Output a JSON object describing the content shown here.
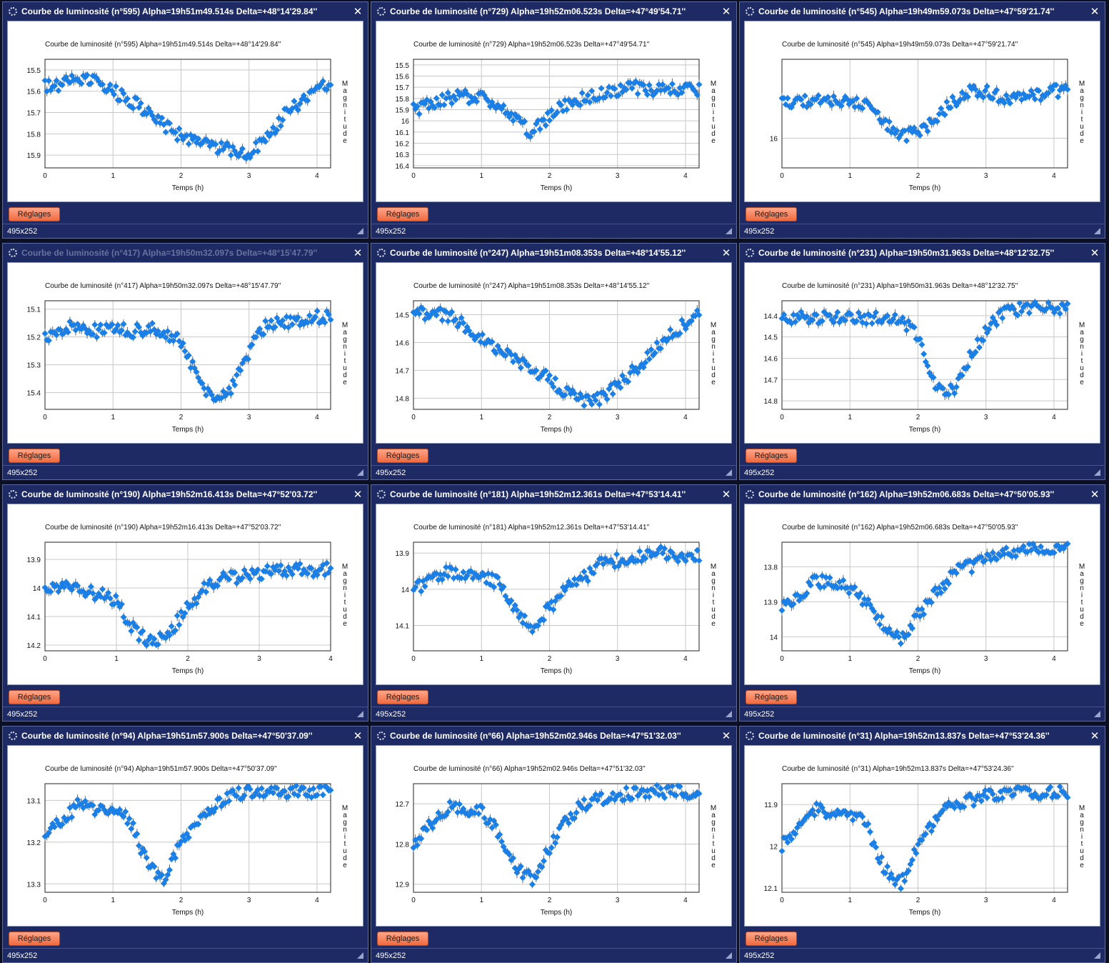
{
  "common": {
    "settings_label": "Réglages",
    "size_label": "495x252",
    "xlabel": "Temps (h)",
    "ylabel": "Magnitude",
    "close_glyph": "✕",
    "colors": {
      "window_bg": "#1d2a63",
      "point": "#1a7fe6",
      "button": "#f37b54"
    }
  },
  "windows": [
    {
      "title": "Courbe de luminosité (n°595) Alpha=19h51m49.514s Delta=+48°14'29.84''",
      "chart_data": {
        "type": "scatter",
        "title": "Courbe de luminosité (n°595) Alpha=19h51m49.514s Delta=+48°14'29.84''",
        "xlabel": "Temps (h)",
        "ylabel": "Magnitude",
        "xlim": [
          0,
          4.2
        ],
        "ylim": [
          15.45,
          15.96
        ],
        "y_inverted": true,
        "xticks": [
          0,
          1,
          2,
          3,
          4
        ],
        "yticks": [
          15.5,
          15.6,
          15.7,
          15.8,
          15.9
        ],
        "x": [
          0,
          0.25,
          0.5,
          0.75,
          1,
          1.25,
          1.5,
          1.75,
          2,
          2.25,
          2.5,
          2.75,
          3,
          3.25,
          3.5,
          3.75,
          4,
          4.2
        ],
        "y": [
          15.58,
          15.57,
          15.54,
          15.56,
          15.6,
          15.64,
          15.7,
          15.76,
          15.81,
          15.84,
          15.86,
          15.88,
          15.9,
          15.82,
          15.72,
          15.65,
          15.6,
          15.55
        ]
      }
    },
    {
      "title": "Courbe de luminosité (n°729) Alpha=19h52m06.523s Delta=+47°49'54.71''",
      "chart_data": {
        "type": "scatter",
        "title": "Courbe de luminosité (n°729) Alpha=19h52m06.523s Delta=+47°49'54.71''",
        "xlabel": "Temps (h)",
        "ylabel": "Magnitude",
        "xlim": [
          0,
          4.2
        ],
        "ylim": [
          15.45,
          16.42
        ],
        "y_inverted": true,
        "xticks": [
          0,
          1,
          2,
          3,
          4
        ],
        "yticks": [
          15.5,
          15.6,
          15.7,
          15.8,
          15.9,
          16,
          16.1,
          16.2,
          16.3,
          16.4
        ],
        "x": [
          0,
          0.25,
          0.5,
          0.75,
          1,
          1.25,
          1.5,
          1.75,
          2,
          2.25,
          2.5,
          2.75,
          3,
          3.25,
          3.5,
          3.75,
          4,
          4.2
        ],
        "y": [
          15.9,
          15.85,
          15.8,
          15.78,
          15.8,
          15.85,
          16.0,
          16.1,
          15.95,
          15.85,
          15.8,
          15.75,
          15.72,
          15.7,
          15.72,
          15.72,
          15.72,
          15.72
        ]
      }
    },
    {
      "title": "Courbe de luminosité (n°545) Alpha=19h49m59.073s Delta=+47°59'21.74''",
      "chart_data": {
        "type": "scatter",
        "title": "Courbe de luminosité (n°545) Alpha=19h49m59.073s Delta=+47°59'21.74''",
        "xlabel": "Temps (h)",
        "ylabel": "Magnitude",
        "xlim": [
          0,
          4.2
        ],
        "ylim": [
          15.6,
          16.15
        ],
        "y_inverted": true,
        "xticks": [
          0,
          1,
          2,
          3,
          4
        ],
        "yticks": [
          16
        ],
        "x": [
          0,
          0.25,
          0.5,
          0.75,
          1,
          1.25,
          1.5,
          1.75,
          2,
          2.25,
          2.5,
          2.75,
          3,
          3.25,
          3.5,
          3.75,
          4,
          4.2
        ],
        "y": [
          15.82,
          15.82,
          15.81,
          15.82,
          15.82,
          15.83,
          15.92,
          15.98,
          15.98,
          15.9,
          15.82,
          15.76,
          15.76,
          15.8,
          15.78,
          15.78,
          15.76,
          15.76
        ]
      }
    },
    {
      "title": "Courbe de luminosité (n°417) Alpha=19h50m32.097s Delta=+48°15'47.79''",
      "dim": true,
      "chart_data": {
        "type": "scatter",
        "title": "Courbe de luminosité (n°417) Alpha=19h50m32.097s Delta=+48°15'47.79''",
        "xlabel": "Temps (h)",
        "ylabel": "Magnitude",
        "xlim": [
          0,
          4.2
        ],
        "ylim": [
          15.07,
          15.46
        ],
        "y_inverted": true,
        "xticks": [
          0,
          1,
          2,
          3,
          4
        ],
        "yticks": [
          15.1,
          15.2,
          15.3,
          15.4
        ],
        "x": [
          0,
          0.25,
          0.5,
          0.75,
          1,
          1.25,
          1.5,
          1.75,
          2,
          2.25,
          2.5,
          2.75,
          3,
          3.25,
          3.5,
          3.75,
          4,
          4.2
        ],
        "y": [
          15.2,
          15.17,
          15.16,
          15.18,
          15.17,
          15.18,
          15.17,
          15.18,
          15.22,
          15.35,
          15.43,
          15.38,
          15.25,
          15.16,
          15.15,
          15.14,
          15.13,
          15.13
        ]
      }
    },
    {
      "title": "Courbe de luminosité (n°247) Alpha=19h51m08.353s Delta=+48°14'55.12''",
      "chart_data": {
        "type": "scatter",
        "title": "Courbe de luminosité (n°247) Alpha=19h51m08.353s Delta=+48°14'55.12''",
        "xlabel": "Temps (h)",
        "ylabel": "Magnitude",
        "xlim": [
          0,
          4.2
        ],
        "ylim": [
          14.45,
          14.84
        ],
        "y_inverted": true,
        "xticks": [
          0,
          1,
          2,
          3,
          4
        ],
        "yticks": [
          14.5,
          14.6,
          14.7,
          14.8
        ],
        "x": [
          0,
          0.25,
          0.5,
          0.75,
          1,
          1.25,
          1.5,
          1.75,
          2,
          2.25,
          2.5,
          2.75,
          3,
          3.25,
          3.5,
          3.75,
          4,
          4.2
        ],
        "y": [
          14.5,
          14.49,
          14.5,
          14.54,
          14.59,
          14.62,
          14.66,
          14.7,
          14.73,
          14.78,
          14.81,
          14.8,
          14.75,
          14.7,
          14.64,
          14.58,
          14.53,
          14.48
        ]
      }
    },
    {
      "title": "Courbe de luminosité (n°231) Alpha=19h50m31.963s Delta=+48°12'32.75''",
      "chart_data": {
        "type": "scatter",
        "title": "Courbe de luminosité (n°231) Alpha=19h50m31.963s Delta=+48°12'32.75''",
        "xlabel": "Temps (h)",
        "ylabel": "Magnitude",
        "xlim": [
          0,
          4.2
        ],
        "ylim": [
          14.33,
          14.84
        ],
        "y_inverted": true,
        "xticks": [
          0,
          1,
          2,
          3,
          4
        ],
        "yticks": [
          14.4,
          14.5,
          14.6,
          14.7,
          14.8
        ],
        "x": [
          0,
          0.25,
          0.5,
          0.75,
          1,
          1.25,
          1.5,
          1.75,
          2,
          2.25,
          2.5,
          2.75,
          3,
          3.25,
          3.5,
          3.75,
          4,
          4.2
        ],
        "y": [
          14.42,
          14.41,
          14.41,
          14.41,
          14.4,
          14.41,
          14.41,
          14.42,
          14.5,
          14.72,
          14.76,
          14.6,
          14.48,
          14.38,
          14.37,
          14.36,
          14.36,
          14.36
        ]
      }
    },
    {
      "title": "Courbe de luminosité (n°190) Alpha=19h52m16.413s Delta=+47°52'03.72''",
      "chart_data": {
        "type": "scatter",
        "title": "Courbe de luminosité (n°190) Alpha=19h52m16.413s Delta=+47°52'03.72''",
        "xlabel": "Temps (h)",
        "ylabel": "Magnitude",
        "xlim": [
          0,
          4
        ],
        "ylim": [
          13.84,
          14.22
        ],
        "y_inverted": true,
        "xticks": [
          0,
          1,
          2,
          3,
          4
        ],
        "yticks": [
          13.9,
          14,
          14.1,
          14.2
        ],
        "x": [
          0,
          0.25,
          0.5,
          0.75,
          1,
          1.25,
          1.5,
          1.75,
          2,
          2.25,
          2.5,
          2.75,
          3,
          3.25,
          3.5,
          3.75,
          4
        ],
        "y": [
          14.0,
          13.99,
          14.01,
          14.02,
          14.05,
          14.15,
          14.19,
          14.15,
          14.07,
          14.0,
          13.97,
          13.96,
          13.95,
          13.94,
          13.93,
          13.94,
          13.93
        ]
      }
    },
    {
      "title": "Courbe de luminosité (n°181) Alpha=19h52m12.361s Delta=+47°53'14.41''",
      "chart_data": {
        "type": "scatter",
        "title": "Courbe de luminosité (n°181) Alpha=19h52m12.361s Delta=+47°53'14.41''",
        "xlabel": "Temps (h)",
        "ylabel": "Magnitude",
        "xlim": [
          0,
          4.2
        ],
        "ylim": [
          13.87,
          14.17
        ],
        "y_inverted": true,
        "xticks": [
          0,
          1,
          2,
          3,
          4
        ],
        "yticks": [
          13.9,
          14,
          14.1
        ],
        "x": [
          0,
          0.25,
          0.5,
          0.75,
          1,
          1.25,
          1.5,
          1.75,
          2,
          2.25,
          2.5,
          2.75,
          3,
          3.25,
          3.5,
          3.75,
          4,
          4.2
        ],
        "y": [
          14.0,
          13.98,
          13.95,
          13.96,
          13.97,
          13.98,
          14.05,
          14.11,
          14.05,
          14.0,
          13.97,
          13.93,
          13.92,
          13.91,
          13.9,
          13.9,
          13.91,
          13.91
        ]
      }
    },
    {
      "title": "Courbe de luminosité (n°162) Alpha=19h52m06.683s Delta=+47°50'05.93''",
      "chart_data": {
        "type": "scatter",
        "title": "Courbe de luminosité (n°162) Alpha=19h52m06.683s Delta=+47°50'05.93''",
        "xlabel": "Temps (h)",
        "ylabel": "Magnitude",
        "xlim": [
          0,
          4.2
        ],
        "ylim": [
          13.73,
          14.04
        ],
        "y_inverted": true,
        "xticks": [
          0,
          1,
          2,
          3,
          4
        ],
        "yticks": [
          13.8,
          13.9,
          14
        ],
        "x": [
          0,
          0.25,
          0.5,
          0.75,
          1,
          1.25,
          1.5,
          1.75,
          2,
          2.25,
          2.5,
          2.75,
          3,
          3.25,
          3.5,
          3.75,
          4,
          4.2
        ],
        "y": [
          13.92,
          13.88,
          13.84,
          13.85,
          13.86,
          13.9,
          13.97,
          14.01,
          13.94,
          13.88,
          13.82,
          13.8,
          13.78,
          13.76,
          13.75,
          13.75,
          13.75,
          13.75
        ]
      }
    },
    {
      "title": "Courbe de luminosité (n°94) Alpha=19h51m57.900s Delta=+47°50'37.09''",
      "chart_data": {
        "type": "scatter",
        "title": "Courbe de luminosité (n°94) Alpha=19h51m57.900s Delta=+47°50'37.09''",
        "xlabel": "Temps (h)",
        "ylabel": "Magnitude",
        "xlim": [
          0,
          4.2
        ],
        "ylim": [
          13.06,
          13.32
        ],
        "y_inverted": true,
        "xticks": [
          0,
          1,
          2,
          3,
          4
        ],
        "yticks": [
          13.1,
          13.2,
          13.3
        ],
        "x": [
          0,
          0.25,
          0.5,
          0.75,
          1,
          1.25,
          1.5,
          1.75,
          2,
          2.25,
          2.5,
          2.75,
          3,
          3.25,
          3.5,
          3.75,
          4,
          4.2
        ],
        "y": [
          13.18,
          13.15,
          13.11,
          13.12,
          13.12,
          13.15,
          13.25,
          13.29,
          13.2,
          13.15,
          13.11,
          13.09,
          13.08,
          13.08,
          13.08,
          13.08,
          13.08,
          13.08
        ]
      }
    },
    {
      "title": "Courbe de luminosité (n°66) Alpha=19h52m02.946s Delta=+47°51'32.03''",
      "chart_data": {
        "type": "scatter",
        "title": "Courbe de luminosité (n°66) Alpha=19h52m02.946s Delta=+47°51'32.03''",
        "xlabel": "Temps (h)",
        "ylabel": "Magnitude",
        "xlim": [
          0,
          4.2
        ],
        "ylim": [
          12.65,
          12.92
        ],
        "y_inverted": true,
        "xticks": [
          0,
          1,
          2,
          3,
          4
        ],
        "yticks": [
          12.7,
          12.8,
          12.9
        ],
        "x": [
          0,
          0.25,
          0.5,
          0.75,
          1,
          1.25,
          1.5,
          1.75,
          2,
          2.25,
          2.5,
          2.75,
          3,
          3.25,
          3.5,
          3.75,
          4,
          4.2
        ],
        "y": [
          12.8,
          12.75,
          12.71,
          12.72,
          12.72,
          12.77,
          12.86,
          12.89,
          12.81,
          12.74,
          12.7,
          12.69,
          12.68,
          12.67,
          12.67,
          12.67,
          12.67,
          12.67
        ]
      }
    },
    {
      "title": "Courbe de luminosité (n°31) Alpha=19h52m13.837s Delta=+47°53'24.36''",
      "chart_data": {
        "type": "scatter",
        "title": "Courbe de luminosité (n°31) Alpha=19h52m13.837s Delta=+47°53'24.36''",
        "xlabel": "Temps (h)",
        "ylabel": "Magnitude",
        "xlim": [
          0,
          4.2
        ],
        "ylim": [
          11.85,
          12.11
        ],
        "y_inverted": true,
        "xticks": [
          0,
          1,
          2,
          3,
          4
        ],
        "yticks": [
          11.9,
          12,
          12.1
        ],
        "x": [
          0,
          0.25,
          0.5,
          0.75,
          1,
          1.25,
          1.5,
          1.75,
          2,
          2.25,
          2.5,
          2.75,
          3,
          3.25,
          3.5,
          3.75,
          4,
          4.2
        ],
        "y": [
          12.0,
          11.95,
          11.91,
          11.92,
          11.92,
          11.95,
          12.05,
          12.09,
          12.0,
          11.94,
          11.9,
          11.89,
          11.88,
          11.88,
          11.87,
          11.87,
          11.87,
          11.87
        ]
      }
    }
  ]
}
